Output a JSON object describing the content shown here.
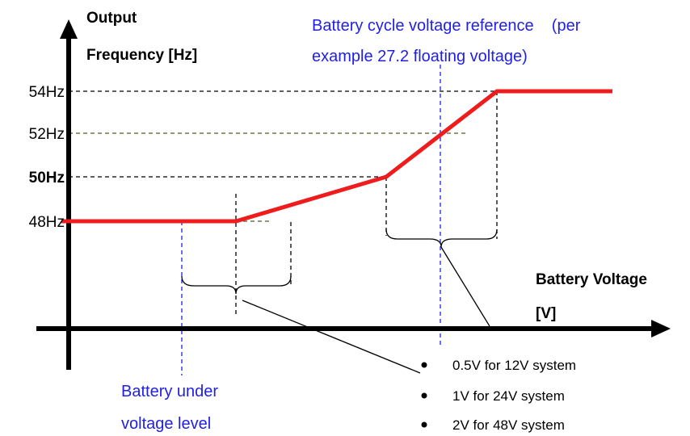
{
  "y_axis": {
    "label_lines": [
      "Output",
      "Frequency [Hz]"
    ]
  },
  "levels": [
    "54Hz",
    "52Hz",
    "50Hz",
    "48Hz"
  ],
  "x_axis": {
    "label_lines": [
      "Battery Voltage",
      "[V]"
    ]
  },
  "annotations": {
    "reference": [
      "Battery cycle voltage reference    (per",
      "example 27.2 floating voltage)"
    ],
    "under_voltage": [
      "Battery under",
      "voltage level"
    ]
  },
  "bullets": [
    "0.5V for 12V system",
    "1V for 24V system",
    "2V for 48V system"
  ]
}
